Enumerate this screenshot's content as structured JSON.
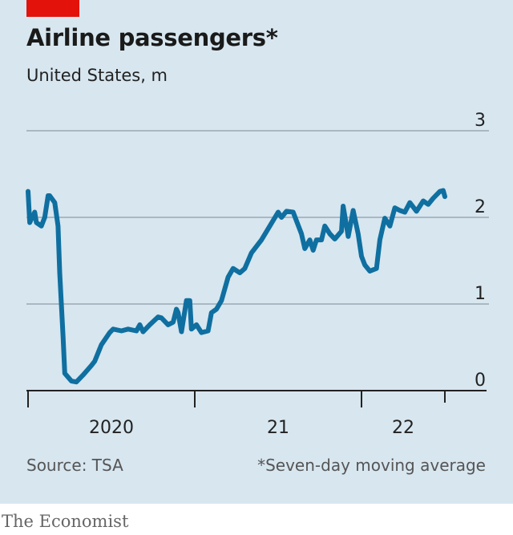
{
  "chart_data": {
    "type": "line",
    "title": "Airline passengers*",
    "subtitle": "United States, m",
    "ylim": [
      0,
      3
    ],
    "yticks": [
      {
        "value": 0,
        "label": "0"
      },
      {
        "value": 1,
        "label": "1"
      },
      {
        "value": 2,
        "label": "2"
      },
      {
        "value": 3,
        "label": "3"
      }
    ],
    "xlim": [
      2020.0,
      2022.75
    ],
    "xtick_marks": [
      2020.0,
      2021.0,
      2022.0,
      2022.5
    ],
    "xtick_labels": [
      {
        "value": 2020.5,
        "label": "2020"
      },
      {
        "value": 2021.5,
        "label": "21"
      },
      {
        "value": 2022.25,
        "label": "22"
      }
    ],
    "grid": true,
    "line_color": "#0f6fa0",
    "accent_color": "#e3120b",
    "series": [
      {
        "x": [
          2020.0,
          2020.01,
          2020.04,
          2020.05,
          2020.08,
          2020.1,
          2020.12,
          2020.13,
          2020.16,
          2020.18,
          2020.19,
          2020.21,
          2020.22,
          2020.26,
          2020.29,
          2020.33,
          2020.38,
          2020.4,
          2020.44,
          2020.49,
          2020.51,
          2020.56,
          2020.6,
          2020.65,
          2020.67,
          2020.69,
          2020.73,
          2020.78,
          2020.8,
          2020.84,
          2020.87,
          2020.89,
          2020.9,
          2020.92,
          2020.95,
          2020.97,
          2020.98,
          2021.01,
          2021.04,
          2021.08,
          2021.1,
          2021.13,
          2021.16,
          2021.2,
          2021.23,
          2021.27,
          2021.3,
          2021.34,
          2021.38,
          2021.4,
          2021.45,
          2021.5,
          2021.52,
          2021.55,
          2021.59,
          2021.64,
          2021.66,
          2021.69,
          2021.71,
          2021.73,
          2021.76,
          2021.78,
          2021.81,
          2021.84,
          2021.88,
          2021.89,
          2021.91,
          2021.92,
          2021.95,
          2021.98,
          2022.0,
          2022.02,
          2022.05,
          2022.09,
          2022.11,
          2022.14,
          2022.17,
          2022.2,
          2022.23,
          2022.26,
          2022.29,
          2022.33,
          2022.37,
          2022.4,
          2022.43,
          2022.47,
          2022.49,
          2022.5
        ],
        "y": [
          2.3,
          1.94,
          2.06,
          1.94,
          1.9,
          2.0,
          2.25,
          2.25,
          2.17,
          1.9,
          1.36,
          0.62,
          0.2,
          0.11,
          0.1,
          0.18,
          0.29,
          0.34,
          0.53,
          0.67,
          0.71,
          0.69,
          0.71,
          0.69,
          0.76,
          0.68,
          0.76,
          0.85,
          0.84,
          0.76,
          0.79,
          0.94,
          0.9,
          0.68,
          1.04,
          1.04,
          0.71,
          0.76,
          0.67,
          0.69,
          0.9,
          0.94,
          1.04,
          1.31,
          1.41,
          1.36,
          1.41,
          1.59,
          1.69,
          1.74,
          1.9,
          2.06,
          2.0,
          2.07,
          2.06,
          1.81,
          1.64,
          1.74,
          1.62,
          1.74,
          1.74,
          1.9,
          1.81,
          1.75,
          1.84,
          2.13,
          1.9,
          1.78,
          2.08,
          1.81,
          1.55,
          1.45,
          1.38,
          1.41,
          1.74,
          1.99,
          1.9,
          2.11,
          2.08,
          2.06,
          2.17,
          2.07,
          2.19,
          2.15,
          2.22,
          2.3,
          2.31,
          2.24
        ]
      }
    ],
    "source": "Source: TSA",
    "note": "*Seven-day moving average"
  },
  "brand": "The Economist"
}
